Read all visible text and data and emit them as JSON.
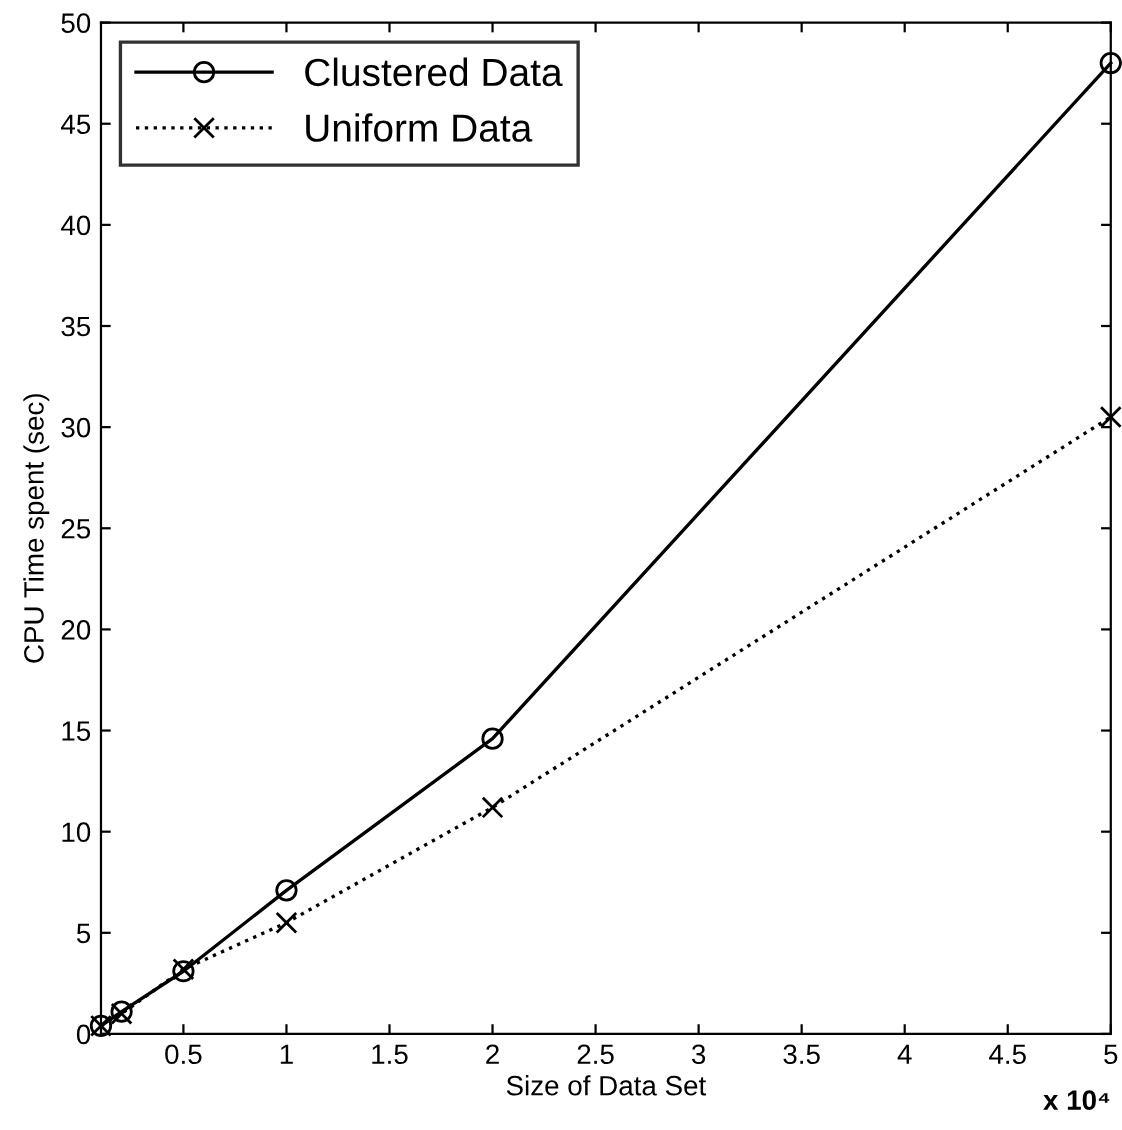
{
  "chart_data": {
    "type": "line",
    "xlabel": "Size of Data Set",
    "ylabel": "CPU Time spent (sec)",
    "annotations": [
      "x 10⁴"
    ],
    "series": [
      {
        "name": "Clustered Data",
        "color": "#000000",
        "marker": "circle",
        "line_style": "solid",
        "x": [
          0.1,
          0.2,
          0.5,
          1,
          2,
          5
        ],
        "values": [
          0.4,
          1.1,
          3.1,
          7.1,
          14.6,
          48
        ]
      },
      {
        "name": "Uniform Data",
        "color": "#000000",
        "marker": "cross",
        "line_style": "dotted",
        "x": [
          0.1,
          0.2,
          0.5,
          1,
          2,
          5
        ],
        "values": [
          0.4,
          1.0,
          3.2,
          5.5,
          11.2,
          30.5
        ]
      }
    ],
    "xlim": [
      0.1,
      5
    ],
    "xticks": [
      0.5,
      1,
      1.5,
      2,
      2.5,
      3,
      3.5,
      4,
      4.5,
      5
    ],
    "ylim": [
      0,
      50
    ],
    "yticks": [
      0,
      5,
      10,
      15,
      20,
      25,
      30,
      35,
      40,
      45,
      50
    ],
    "grid": false,
    "legend": "top left"
  }
}
